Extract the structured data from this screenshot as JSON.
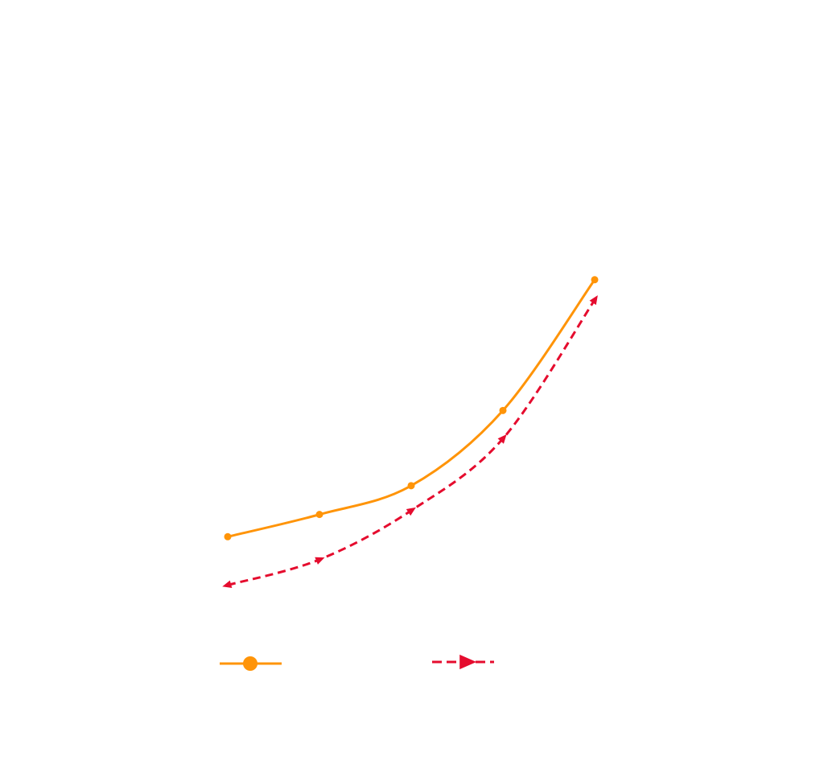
{
  "chart_data": {
    "type": "line",
    "title": "",
    "xlabel": "",
    "ylabel": "",
    "axes_visible": false,
    "grid": false,
    "legend_position": "bottom",
    "x": [
      1,
      2,
      3,
      4,
      5
    ],
    "xlim": [
      1,
      5
    ],
    "ylim": [
      0,
      100
    ],
    "series": [
      {
        "name": "",
        "values": [
          21.0,
          24.4,
          28.8,
          40.3,
          60.3
        ],
        "color": "#ff9408",
        "line_style": "solid",
        "marker": "circle",
        "smooth": true
      },
      {
        "name": "",
        "values": [
          13.6,
          17.5,
          25.0,
          36.0,
          57.2
        ],
        "color": "#e50c2e",
        "line_style": "dashed",
        "marker": "triangle-right",
        "smooth": true
      }
    ]
  }
}
